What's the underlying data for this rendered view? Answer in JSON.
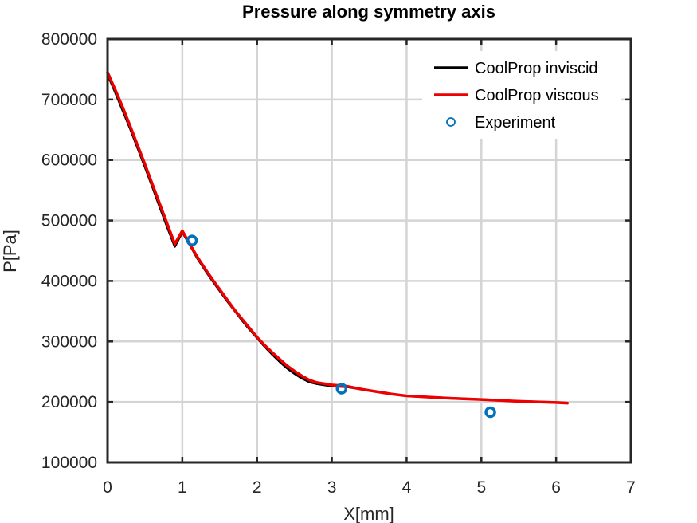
{
  "chart_data": {
    "type": "line",
    "title": "Pressure along symmetry axis",
    "xlabel": "X[mm]",
    "ylabel": "P[Pa]",
    "xlim": [
      0,
      7
    ],
    "ylim": [
      100000,
      800000
    ],
    "xticks": [
      0,
      1,
      2,
      3,
      4,
      5,
      6,
      7
    ],
    "yticks": [
      100000,
      200000,
      300000,
      400000,
      500000,
      600000,
      700000,
      800000
    ],
    "xtick_labels": [
      "0",
      "1",
      "2",
      "3",
      "4",
      "5",
      "6",
      "7"
    ],
    "ytick_labels": [
      "100000",
      "200000",
      "300000",
      "400000",
      "500000",
      "600000",
      "700000",
      "800000"
    ],
    "grid": true,
    "legend_position": "top-right",
    "series": [
      {
        "name": "CoolProp inviscid",
        "kind": "line",
        "color": "#000000",
        "x": [
          0,
          0.1,
          0.2,
          0.3,
          0.4,
          0.5,
          0.6,
          0.7,
          0.8,
          0.9,
          1.0,
          1.1,
          1.2,
          1.3,
          1.4,
          1.5,
          1.6,
          1.7,
          1.8,
          1.9,
          2.0,
          2.1,
          2.2,
          2.3,
          2.4,
          2.5,
          2.6,
          2.7,
          2.8,
          2.9,
          3.0,
          3.2,
          3.4,
          3.6,
          3.8,
          4.0,
          4.3,
          4.6,
          5.0,
          5.5,
          6.0,
          6.15
        ],
        "y": [
          742000,
          713000,
          683000,
          653000,
          621000,
          589000,
          556000,
          522000,
          489000,
          457000,
          481000,
          460000,
          438000,
          419000,
          401000,
          384000,
          367000,
          351000,
          335000,
          320000,
          306000,
          292000,
          279000,
          267000,
          256000,
          247000,
          239000,
          233000,
          230000,
          228000,
          226000,
          225000,
          221000,
          217000,
          213000,
          210000,
          208000,
          206000,
          204000,
          201000,
          199000,
          198000
        ]
      },
      {
        "name": "CoolProp viscous",
        "kind": "line",
        "color": "#ee0000",
        "x": [
          0,
          0.1,
          0.2,
          0.3,
          0.4,
          0.5,
          0.6,
          0.7,
          0.8,
          0.9,
          1.0,
          1.1,
          1.2,
          1.3,
          1.4,
          1.5,
          1.6,
          1.7,
          1.8,
          1.9,
          2.0,
          2.1,
          2.2,
          2.3,
          2.4,
          2.5,
          2.6,
          2.7,
          2.8,
          2.9,
          3.0,
          3.2,
          3.4,
          3.6,
          3.8,
          4.0,
          4.3,
          4.6,
          5.0,
          5.5,
          6.0,
          6.15
        ],
        "y": [
          745000,
          717000,
          688000,
          657000,
          625000,
          593000,
          560000,
          527000,
          494000,
          461000,
          483000,
          461000,
          440000,
          421000,
          403000,
          386000,
          369000,
          352000,
          337000,
          322000,
          307000,
          294000,
          282000,
          271000,
          260000,
          251000,
          243000,
          236000,
          232000,
          230000,
          228000,
          226000,
          221000,
          217000,
          213000,
          210000,
          208000,
          206000,
          204000,
          201000,
          199000,
          198000
        ]
      },
      {
        "name": "Experiment",
        "kind": "scatter",
        "color": "#0072bd",
        "x": [
          1.13,
          3.13,
          5.12
        ],
        "y": [
          467000,
          222000,
          183000
        ]
      }
    ]
  }
}
